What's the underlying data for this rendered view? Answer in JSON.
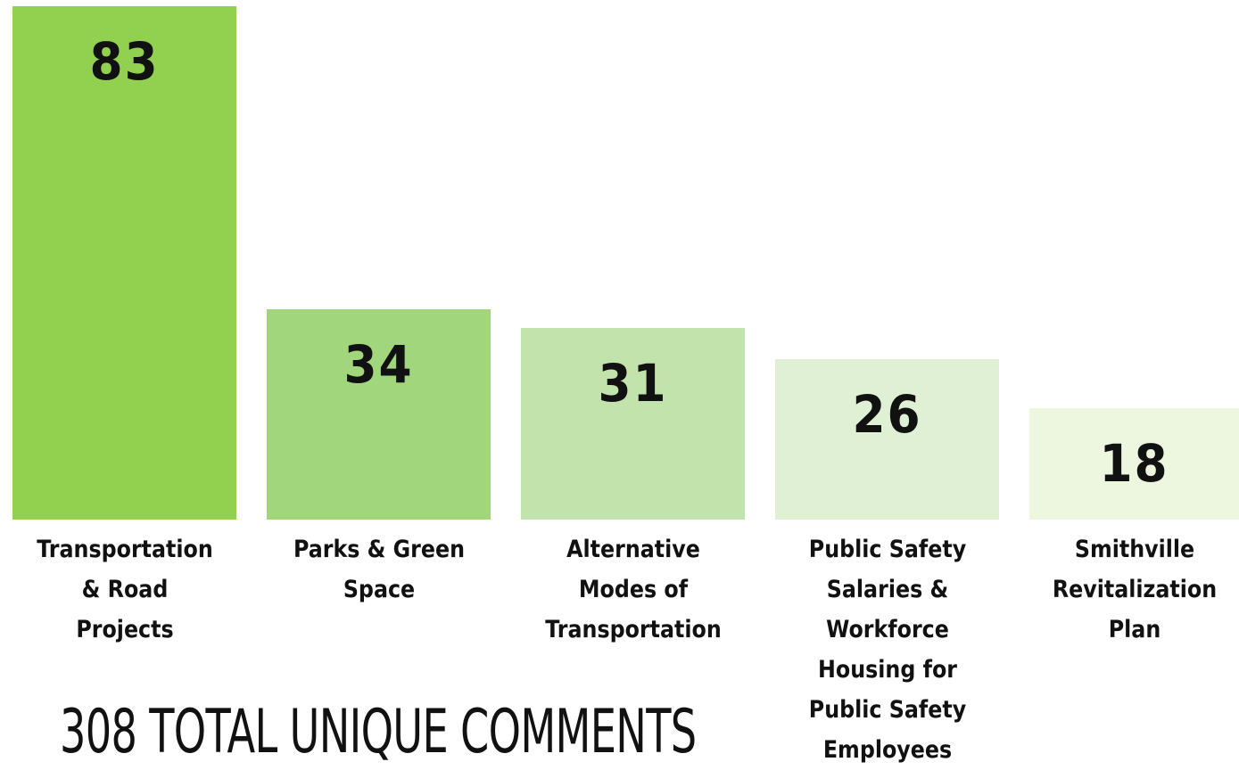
{
  "chart_data": {
    "type": "bar",
    "categories": [
      "Transportation & Road Projects",
      "Parks & Green Space",
      "Alternative Modes of Transportation",
      "Public Safety Salaries & Workforce Housing for Public Safety Employees",
      "Smithville Revitalization Plan"
    ],
    "values": [
      83,
      34,
      31,
      26,
      18
    ],
    "colors": [
      "#92d050",
      "#a2d67d",
      "#c2e3ac",
      "#dff0d5",
      "#edf6df"
    ],
    "total": "308 TOTAL UNIQUE COMMENTS"
  }
}
